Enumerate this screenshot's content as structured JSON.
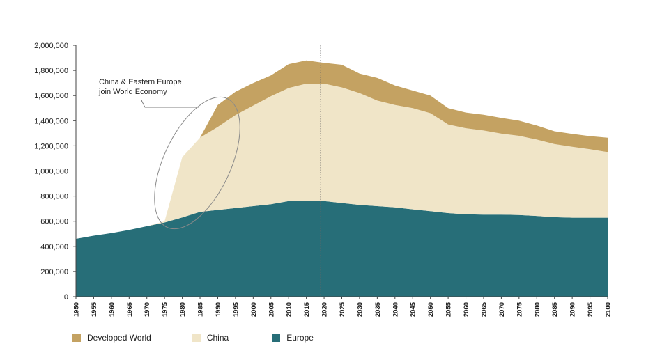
{
  "chart_data": {
    "type": "area",
    "stacked": true,
    "x": [
      1950,
      1955,
      1960,
      1965,
      1970,
      1975,
      1980,
      1985,
      1990,
      1995,
      2000,
      2005,
      2010,
      2015,
      2020,
      2025,
      2030,
      2035,
      2040,
      2045,
      2050,
      2055,
      2060,
      2065,
      2070,
      2075,
      2080,
      2085,
      2090,
      2095,
      2100
    ],
    "x_tick_labels": [
      "1950",
      "1955",
      "1960",
      "1965",
      "1970",
      "1975",
      "1980",
      "1985",
      "1990",
      "1995",
      "2000",
      "2005",
      "2010",
      "2015",
      "2020",
      "2025",
      "2030",
      "2035",
      "2040",
      "2045",
      "2050",
      "2055",
      "2060",
      "2065",
      "2070",
      "2075",
      "2080",
      "2085",
      "2090",
      "2095",
      "2100"
    ],
    "ylim": [
      0,
      2000000
    ],
    "y_ticks": [
      0,
      200000,
      400000,
      600000,
      800000,
      1000000,
      1200000,
      1400000,
      1600000,
      1800000,
      2000000
    ],
    "y_tick_labels": [
      "0",
      "200,000",
      "400,000",
      "600,000",
      "800,000",
      "1,000,000",
      "1,200,000",
      "1,400,000",
      "1,600,000",
      "1,800,000",
      "2,000,000"
    ],
    "series": [
      {
        "name": "Europe",
        "color": "#276e78",
        "values": [
          460000,
          485000,
          505000,
          530000,
          560000,
          590000,
          630000,
          675000,
          690000,
          705000,
          720000,
          735000,
          760000,
          760000,
          760000,
          745000,
          730000,
          720000,
          710000,
          695000,
          680000,
          665000,
          655000,
          652000,
          652000,
          650000,
          642000,
          632000,
          628000,
          628000,
          628000
        ]
      },
      {
        "name": "China",
        "color": "#f0e5c8",
        "values": [
          0,
          0,
          0,
          0,
          0,
          10000,
          480000,
          590000,
          660000,
          740000,
          800000,
          860000,
          900000,
          935000,
          935000,
          920000,
          890000,
          840000,
          815000,
          805000,
          780000,
          705000,
          685000,
          670000,
          645000,
          630000,
          608000,
          582000,
          565000,
          545000,
          522000
        ]
      },
      {
        "name": "Developed World",
        "color": "#c4a262",
        "values": [
          0,
          0,
          0,
          0,
          0,
          0,
          0,
          0,
          175000,
          185000,
          180000,
          165000,
          190000,
          185000,
          165000,
          180000,
          155000,
          180000,
          155000,
          140000,
          140000,
          130000,
          125000,
          125000,
          125000,
          120000,
          112000,
          102000,
          102000,
          104000,
          115000
        ]
      }
    ],
    "legend": {
      "position": "bottom-left",
      "entries": [
        {
          "label": "Developed World",
          "color": "#c4a262"
        },
        {
          "label": "China",
          "color": "#f0e5c8"
        },
        {
          "label": "Europe",
          "color": "#276e78"
        }
      ]
    },
    "reference_line_x": 2019,
    "annotations": [
      {
        "lines": [
          "China & Eastern Europe",
          "join World Economy"
        ]
      }
    ],
    "grid": false
  }
}
